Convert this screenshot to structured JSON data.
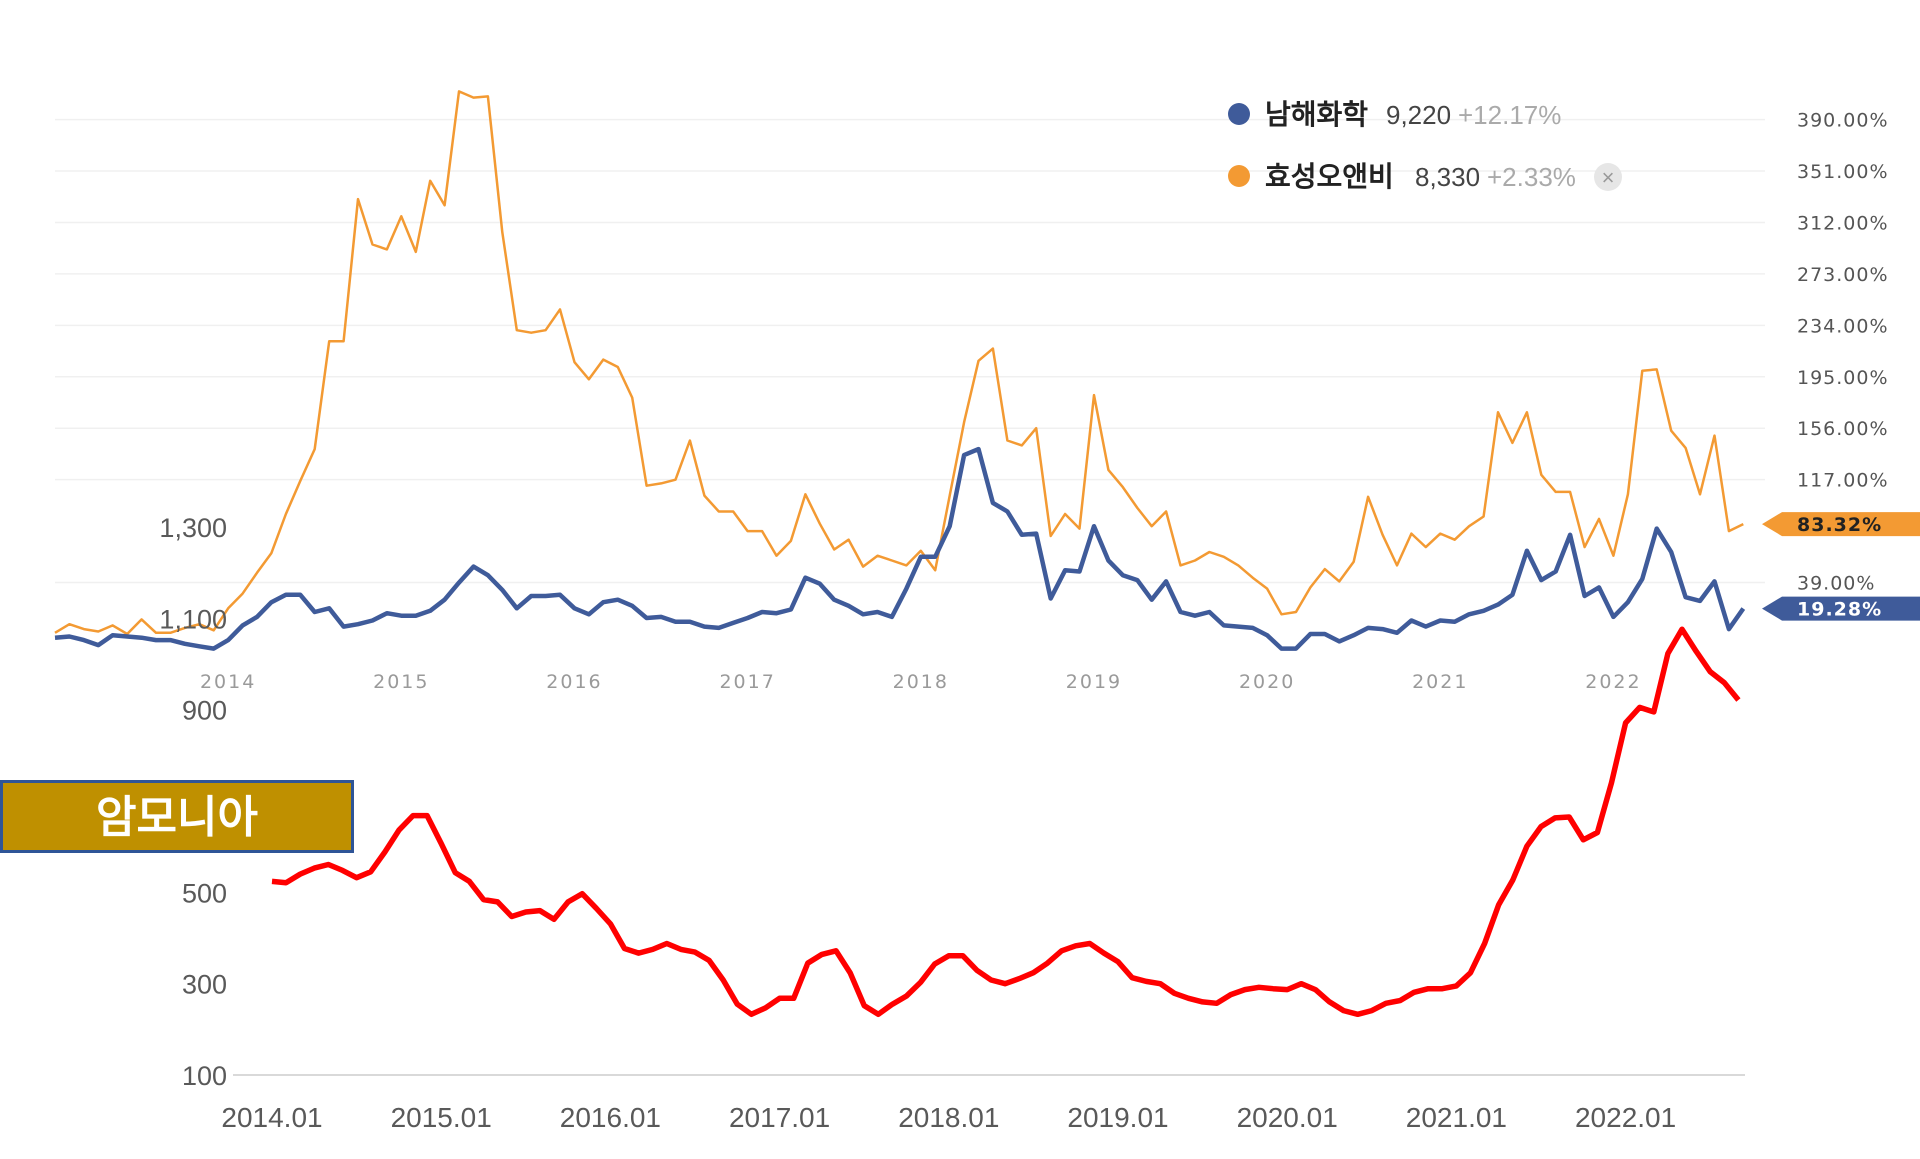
{
  "colors": {
    "nam": "#3F5B9A",
    "hyo": "#F39A33",
    "ammonia": "#FF0000",
    "box_fill": "#BF9000",
    "box_border": "#2F5597"
  },
  "legend": [
    {
      "name": "남해화학",
      "price": "9,220",
      "change": "+12.17%",
      "color": "#3F5B9A"
    },
    {
      "name": "효성오앤비",
      "price": "8,330",
      "change": "+2.33%",
      "color": "#F39A33",
      "close_icon": "×"
    }
  ],
  "label_box": {
    "text": "암모니아"
  },
  "chart_data": [
    {
      "type": "line",
      "x_start": "2013-01",
      "x_interval": "month",
      "x_tick_labels": [
        "2014",
        "2015",
        "2016",
        "2017",
        "2018",
        "2019",
        "2020",
        "2021",
        "2022"
      ],
      "y_unit": "%",
      "y_tick_labels": [
        "390.00%",
        "351.00%",
        "312.00%",
        "273.00%",
        "234.00%",
        "195.00%",
        "156.00%",
        "117.00%",
        "39.00%"
      ],
      "y_ticks": [
        390,
        351,
        312,
        273,
        234,
        195,
        156,
        117,
        39
      ],
      "ylim": [
        -15,
        420
      ],
      "grid": true,
      "series": [
        {
          "name": "남해화학",
          "color": "#3F5B9A",
          "end_label": "19.28%",
          "values": [
            -2.8,
            -1.9,
            -4.6,
            -8.4,
            -0.9,
            -1.9,
            -2.8,
            -4.6,
            -4.6,
            -7.4,
            -9.3,
            -11.1,
            -4.6,
            6.5,
            13.0,
            24.1,
            29.7,
            29.7,
            16.7,
            19.5,
            5.6,
            7.4,
            10.2,
            15.8,
            13.9,
            13.9,
            17.6,
            26.0,
            39.0,
            51.1,
            44.6,
            33.4,
            19.5,
            28.8,
            28.8,
            29.7,
            19.5,
            14.9,
            24.1,
            26.0,
            21.4,
            12.1,
            13.0,
            9.3,
            9.3,
            5.6,
            4.6,
            8.4,
            12.1,
            16.7,
            15.8,
            18.6,
            42.7,
            38.1,
            26.0,
            21.4,
            14.9,
            16.7,
            13.0,
            34.4,
            58.5,
            58.5,
            81.7,
            135.6,
            140.2,
            99.4,
            92.9,
            75.2,
            76.1,
            26.9,
            48.3,
            47.4,
            81.7,
            55.7,
            44.6,
            40.9,
            26.0,
            39.9,
            16.7,
            13.9,
            16.7,
            6.5,
            5.6,
            4.6,
            -0.9,
            -11.1,
            -11.1,
            0,
            0,
            -5.6,
            -0.9,
            4.6,
            3.7,
            0.9,
            10.2,
            5.6,
            10.2,
            9.3,
            14.9,
            17.6,
            22.3,
            29.7,
            63.1,
            40.9,
            47.4,
            75.2,
            28.8,
            35.3,
            13.0,
            24.1,
            41.8,
            79.9,
            62.2,
            27.9,
            25.1,
            39.9,
            3.7,
            19.28
          ]
        },
        {
          "name": "효성오앤비",
          "color": "#F39A33",
          "end_label": "83.32%",
          "values": [
            0.9,
            7.4,
            3.7,
            1.9,
            6.5,
            0,
            11.1,
            0.9,
            0.9,
            4.6,
            7.4,
            2.8,
            19.5,
            30.6,
            46.4,
            61.3,
            91.0,
            116.1,
            140.2,
            221.9,
            221.9,
            329.7,
            295.3,
            291.6,
            316.7,
            289.7,
            343.6,
            325.0,
            411.4,
            406.7,
            407.6,
            304.6,
            230.3,
            228.4,
            230.3,
            246.1,
            206.1,
            193.1,
            208.0,
            202.4,
            179.2,
            112.4,
            114.2,
            117.0,
            146.7,
            104.9,
            92.9,
            92.9,
            78.0,
            78.0,
            59.4,
            70.6,
            105.9,
            83.6,
            64.1,
            71.5,
            51.1,
            59.4,
            55.7,
            52.0,
            63.1,
            48.3,
            104.9,
            160.6,
            207.1,
            216.4,
            146.7,
            143.0,
            156.0,
            74.3,
            91.0,
            79.9,
            181.1,
            124.4,
            111.4,
            95.6,
            81.7,
            92.9,
            52.0,
            55.7,
            62.2,
            58.5,
            52.0,
            42.7,
            34.4,
            14.9,
            16.7,
            35.3,
            49.2,
            39.9,
            54.8,
            104.0,
            75.2,
            52.0,
            76.1,
            65.9,
            76.1,
            71.5,
            81.7,
            89.1,
            168.1,
            144.9,
            168.1,
            120.7,
            107.7,
            107.7,
            65.9,
            87.3,
            59.4,
            105.9,
            199.6,
            200.6,
            154.1,
            141.1,
            105.9,
            150.4,
            78.0,
            83.32
          ]
        }
      ]
    },
    {
      "type": "line",
      "x_start": "2014.01",
      "x_interval": "month",
      "x_tick_labels": [
        "2014.01",
        "2015.01",
        "2016.01",
        "2017.01",
        "2018.01",
        "2019.01",
        "2020.01",
        "2021.01",
        "2022.01"
      ],
      "y_tick_labels": [
        "1,300",
        "1,100",
        "900",
        "500",
        "300",
        "100"
      ],
      "y_ticks": [
        1300,
        1100,
        900,
        500,
        300,
        100
      ],
      "ylim": [
        100,
        1300
      ],
      "series": [
        {
          "name": "암모니아",
          "color": "#FF0000",
          "values": [
            524,
            521,
            540,
            553,
            561,
            548,
            532,
            545,
            588,
            636,
            668,
            668,
            607,
            543,
            524,
            484,
            479,
            447,
            457,
            460,
            441,
            479,
            497,
            465,
            431,
            377,
            367,
            375,
            388,
            375,
            369,
            351,
            308,
            255,
            233,
            247,
            268,
            268,
            345,
            364,
            372,
            324,
            252,
            233,
            255,
            273,
            303,
            343,
            361,
            361,
            329,
            308,
            300,
            311,
            324,
            345,
            372,
            383,
            388,
            367,
            348,
            313,
            305,
            300,
            279,
            268,
            260,
            257,
            276,
            287,
            292,
            289,
            287,
            300,
            287,
            260,
            241,
            233,
            241,
            257,
            263,
            281,
            289,
            289,
            295,
            324,
            388,
            473,
            527,
            601,
            644,
            663,
            665,
            615,
            631,
            740,
            871,
            905,
            895,
            1023,
            1076,
            1028,
            983,
            959,
            921
          ]
        }
      ]
    }
  ]
}
